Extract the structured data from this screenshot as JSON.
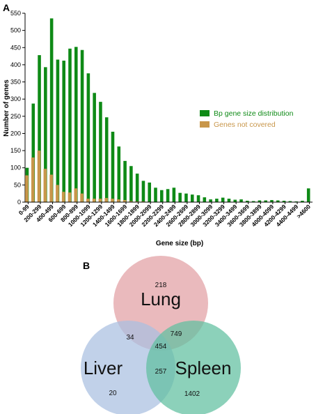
{
  "panel_a_label": "A",
  "panel_b_label": "B",
  "chart_data": {
    "type": "bar",
    "xlabel": "Gene size (bp)",
    "ylabel": "Number of genes",
    "ylim": [
      0,
      550
    ],
    "yticks": [
      0,
      50,
      100,
      150,
      200,
      250,
      300,
      350,
      400,
      450,
      500,
      550
    ],
    "legend_position": "right",
    "categories": [
      "0-99",
      "100-199",
      "200-299",
      "300-399",
      "400-499",
      "500-599",
      "600-699",
      "700-799",
      "800-899",
      "900-999",
      "1000-1099",
      "1100-1199",
      "1200-1299",
      "1300-1399",
      "1400-1499",
      "1500-1599",
      "1600-1699",
      "1700-1799",
      "1800-1899",
      "1900-1999",
      "2000-2099",
      "2100-2199",
      "2200-2299",
      "2300-2399",
      "2400-2499",
      "2500-2599",
      "2600-2699",
      "2700-2799",
      "2800-2899",
      "2900-2999",
      "3000-3099",
      "3100-3199",
      "3200-3299",
      "3300-3399",
      "3400-3499",
      "3500-3599",
      "3600-3699",
      "3700-3799",
      "3800-3899",
      "3900-3999",
      "4000-4099",
      "4100-4199",
      "4200-4299",
      "4300-4399",
      "4400-4499",
      "4500-4599",
      ">4600"
    ],
    "xtick_labels": [
      "0-99",
      "200-299",
      "400-499",
      "600-699",
      "800-899",
      "1000-1099",
      "1200-1299",
      "1400-1499",
      "1600-1699",
      "1800-1899",
      "2000-2099",
      "2200-2299",
      "2400-2499",
      "2600-2699",
      "2800-2899",
      "3000-3099",
      "3200-3299",
      "3400-3499",
      "3600-3699",
      "3800-3899",
      "4000-4099",
      "4200-4299",
      "4400-4499",
      ">4600"
    ],
    "series": [
      {
        "name": "Bp gene size distribution",
        "color": "#0e8a16",
        "values": [
          100,
          287,
          428,
          393,
          535,
          415,
          412,
          447,
          452,
          443,
          375,
          318,
          292,
          247,
          205,
          162,
          120,
          105,
          83,
          62,
          57,
          42,
          35,
          38,
          42,
          27,
          25,
          22,
          20,
          14,
          8,
          10,
          13,
          10,
          7,
          8,
          4,
          3,
          5,
          5,
          6,
          5,
          4,
          3,
          2,
          4,
          40
        ]
      },
      {
        "name": "Genes not covered",
        "color": "#c8964a",
        "values": [
          78,
          130,
          150,
          97,
          80,
          50,
          30,
          28,
          40,
          25,
          10,
          10,
          10,
          12,
          10,
          8,
          6,
          3,
          2,
          2,
          1,
          1,
          1,
          1,
          1,
          1,
          1,
          1,
          1,
          1,
          1,
          1,
          1,
          1,
          1,
          1,
          1,
          1,
          1,
          1,
          1,
          1,
          1,
          1,
          1,
          1,
          1
        ]
      }
    ]
  },
  "venn": {
    "sets": [
      {
        "name": "Lung",
        "color": "#e2a0a4"
      },
      {
        "name": "Liver",
        "color": "#a9bfe0"
      },
      {
        "name": "Spleen",
        "color": "#5fbfa0"
      }
    ],
    "regions": {
      "lung_only": "218",
      "liver_only": "20",
      "spleen_only": "1402",
      "lung_liver": "34",
      "lung_spleen": "749",
      "liver_spleen": "257",
      "all_three": "454"
    }
  }
}
